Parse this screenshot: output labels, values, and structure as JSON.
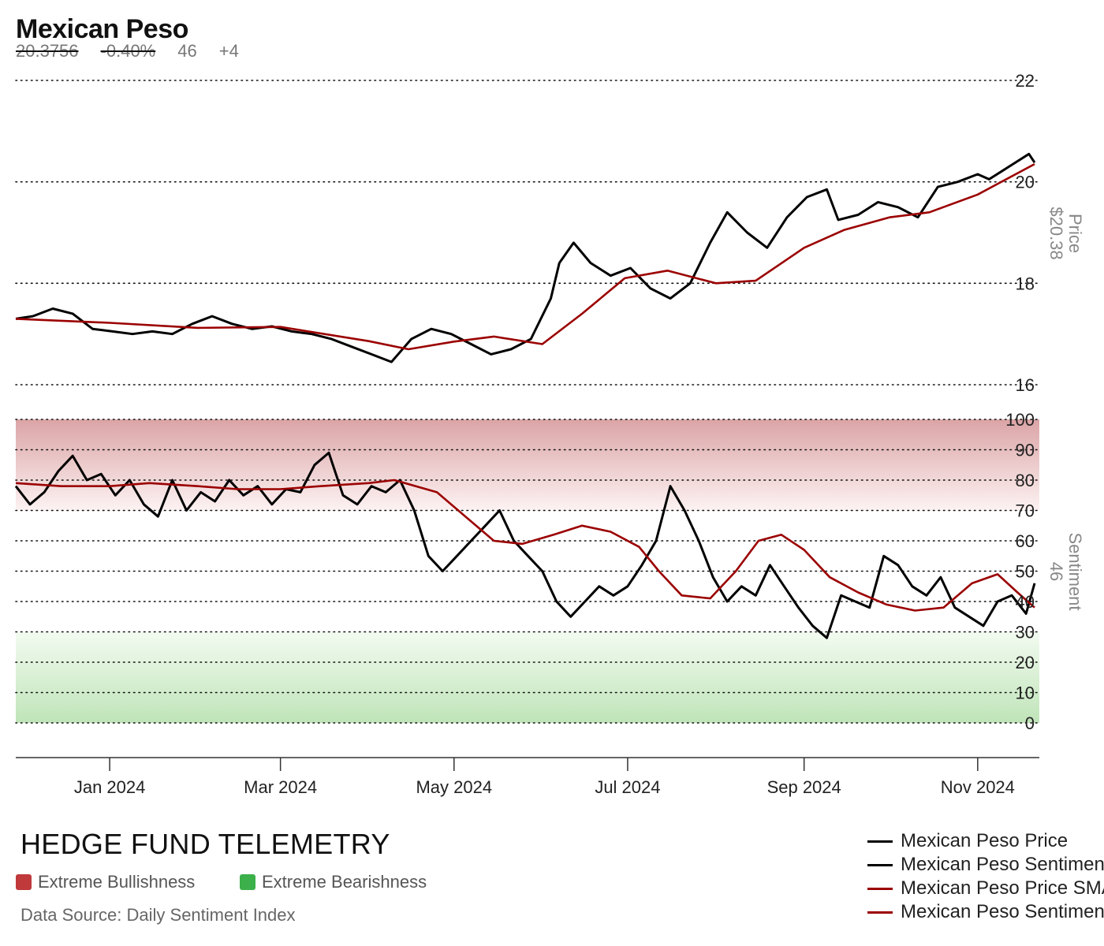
{
  "header": {
    "title": "Mexican Peso",
    "price": "20.3756",
    "change_pct": "-0.40%",
    "sentiment": "46",
    "sentiment_change": "+4"
  },
  "footer": {
    "brand": "HEDGE FUND TELEMETRY",
    "extreme_bull_label": "Extreme Bullishness",
    "extreme_bear_label": "Extreme Bearishness",
    "source": "Data Source: Daily Sentiment Index",
    "bull_color": "#c0393b",
    "bear_color": "#3cb04a"
  },
  "legend": [
    {
      "label": "Mexican Peso Price",
      "color": "#000000"
    },
    {
      "label": "Mexican Peso Sentiment",
      "color": "#000000"
    },
    {
      "label": "Mexican Peso Price SMA",
      "color": "#9b0000"
    },
    {
      "label": "Mexican Peso Sentiment SMA",
      "color": "#9b0000"
    }
  ],
  "chart_data": [
    {
      "type": "line",
      "title": "Mexican Peso",
      "ylabel": "Price",
      "ylabel_value": "$20.38",
      "ylim": [
        16,
        22
      ],
      "yticks": [
        "16",
        "18",
        "20",
        "22"
      ],
      "x_start": "2023-11-29",
      "x_end": "2024-11-21",
      "series": [
        {
          "name": "Mexican Peso Price",
          "color": "#000000",
          "points": [
            [
              "2023-11-29",
              17.3
            ],
            [
              "2023-12-05",
              17.35
            ],
            [
              "2023-12-12",
              17.5
            ],
            [
              "2023-12-19",
              17.4
            ],
            [
              "2023-12-26",
              17.1
            ],
            [
              "2024-01-02",
              17.05
            ],
            [
              "2024-01-09",
              17.0
            ],
            [
              "2024-01-16",
              17.05
            ],
            [
              "2024-01-23",
              17.0
            ],
            [
              "2024-01-30",
              17.2
            ],
            [
              "2024-02-06",
              17.35
            ],
            [
              "2024-02-13",
              17.2
            ],
            [
              "2024-02-20",
              17.1
            ],
            [
              "2024-02-27",
              17.15
            ],
            [
              "2024-03-05",
              17.05
            ],
            [
              "2024-03-12",
              17.0
            ],
            [
              "2024-03-19",
              16.9
            ],
            [
              "2024-03-26",
              16.75
            ],
            [
              "2024-04-02",
              16.6
            ],
            [
              "2024-04-09",
              16.45
            ],
            [
              "2024-04-16",
              16.9
            ],
            [
              "2024-04-23",
              17.1
            ],
            [
              "2024-04-30",
              17.0
            ],
            [
              "2024-05-07",
              16.8
            ],
            [
              "2024-05-14",
              16.6
            ],
            [
              "2024-05-21",
              16.7
            ],
            [
              "2024-05-28",
              16.9
            ],
            [
              "2024-06-04",
              17.7
            ],
            [
              "2024-06-07",
              18.4
            ],
            [
              "2024-06-12",
              18.8
            ],
            [
              "2024-06-18",
              18.4
            ],
            [
              "2024-06-25",
              18.15
            ],
            [
              "2024-07-02",
              18.3
            ],
            [
              "2024-07-09",
              17.9
            ],
            [
              "2024-07-16",
              17.7
            ],
            [
              "2024-07-23",
              18.0
            ],
            [
              "2024-07-30",
              18.8
            ],
            [
              "2024-08-05",
              19.4
            ],
            [
              "2024-08-12",
              19.0
            ],
            [
              "2024-08-19",
              18.7
            ],
            [
              "2024-08-26",
              19.3
            ],
            [
              "2024-09-02",
              19.7
            ],
            [
              "2024-09-09",
              19.85
            ],
            [
              "2024-09-13",
              19.25
            ],
            [
              "2024-09-20",
              19.35
            ],
            [
              "2024-09-27",
              19.6
            ],
            [
              "2024-10-04",
              19.5
            ],
            [
              "2024-10-11",
              19.3
            ],
            [
              "2024-10-18",
              19.9
            ],
            [
              "2024-10-25",
              20.0
            ],
            [
              "2024-11-01",
              20.15
            ],
            [
              "2024-11-05",
              20.05
            ],
            [
              "2024-11-12",
              20.3
            ],
            [
              "2024-11-19",
              20.55
            ],
            [
              "2024-11-21",
              20.38
            ]
          ]
        },
        {
          "name": "Mexican Peso Price SMA",
          "color": "#9b0000",
          "points": [
            [
              "2023-11-29",
              17.3
            ],
            [
              "2024-01-01",
              17.22
            ],
            [
              "2024-02-01",
              17.12
            ],
            [
              "2024-03-01",
              17.14
            ],
            [
              "2024-04-01",
              16.86
            ],
            [
              "2024-04-15",
              16.7
            ],
            [
              "2024-05-01",
              16.85
            ],
            [
              "2024-05-15",
              16.95
            ],
            [
              "2024-06-01",
              16.8
            ],
            [
              "2024-06-15",
              17.4
            ],
            [
              "2024-06-30",
              18.1
            ],
            [
              "2024-07-15",
              18.25
            ],
            [
              "2024-08-01",
              18.0
            ],
            [
              "2024-08-15",
              18.05
            ],
            [
              "2024-09-01",
              18.7
            ],
            [
              "2024-09-15",
              19.05
            ],
            [
              "2024-10-01",
              19.3
            ],
            [
              "2024-10-15",
              19.4
            ],
            [
              "2024-11-01",
              19.75
            ],
            [
              "2024-11-21",
              20.35
            ]
          ]
        }
      ]
    },
    {
      "type": "line",
      "ylabel": "Sentiment",
      "ylabel_value": "46",
      "ylim": [
        0,
        100
      ],
      "yticks": [
        "0",
        "10",
        "20",
        "30",
        "40",
        "50",
        "60",
        "70",
        "80",
        "90",
        "100"
      ],
      "bands": [
        {
          "name": "Extreme Bullishness",
          "from": 70,
          "to": 100,
          "color": "#c0393b"
        },
        {
          "name": "Extreme Bearishness",
          "from": 0,
          "to": 30,
          "color": "#3cb04a"
        }
      ],
      "xticks": [
        "Jan 2024",
        "Mar 2024",
        "May 2024",
        "Jul 2024",
        "Sep 2024",
        "Nov 2024"
      ],
      "xtick_dates": [
        "2024-01-01",
        "2024-03-01",
        "2024-05-01",
        "2024-07-01",
        "2024-09-01",
        "2024-11-01"
      ],
      "series": [
        {
          "name": "Mexican Peso Sentiment",
          "color": "#000000",
          "points": [
            [
              "2023-11-29",
              78
            ],
            [
              "2023-12-04",
              72
            ],
            [
              "2023-12-09",
              76
            ],
            [
              "2023-12-14",
              83
            ],
            [
              "2023-12-19",
              88
            ],
            [
              "2023-12-24",
              80
            ],
            [
              "2023-12-29",
              82
            ],
            [
              "2024-01-03",
              75
            ],
            [
              "2024-01-08",
              80
            ],
            [
              "2024-01-13",
              72
            ],
            [
              "2024-01-18",
              68
            ],
            [
              "2024-01-23",
              80
            ],
            [
              "2024-01-28",
              70
            ],
            [
              "2024-02-02",
              76
            ],
            [
              "2024-02-07",
              73
            ],
            [
              "2024-02-12",
              80
            ],
            [
              "2024-02-17",
              75
            ],
            [
              "2024-02-22",
              78
            ],
            [
              "2024-02-27",
              72
            ],
            [
              "2024-03-03",
              77
            ],
            [
              "2024-03-08",
              76
            ],
            [
              "2024-03-13",
              85
            ],
            [
              "2024-03-18",
              89
            ],
            [
              "2024-03-23",
              75
            ],
            [
              "2024-03-28",
              72
            ],
            [
              "2024-04-02",
              78
            ],
            [
              "2024-04-07",
              76
            ],
            [
              "2024-04-12",
              80
            ],
            [
              "2024-04-17",
              70
            ],
            [
              "2024-04-22",
              55
            ],
            [
              "2024-04-27",
              50
            ],
            [
              "2024-05-02",
              55
            ],
            [
              "2024-05-07",
              60
            ],
            [
              "2024-05-12",
              65
            ],
            [
              "2024-05-17",
              70
            ],
            [
              "2024-05-22",
              60
            ],
            [
              "2024-05-27",
              55
            ],
            [
              "2024-06-01",
              50
            ],
            [
              "2024-06-06",
              40
            ],
            [
              "2024-06-11",
              35
            ],
            [
              "2024-06-16",
              40
            ],
            [
              "2024-06-21",
              45
            ],
            [
              "2024-06-26",
              42
            ],
            [
              "2024-07-01",
              45
            ],
            [
              "2024-07-06",
              52
            ],
            [
              "2024-07-11",
              60
            ],
            [
              "2024-07-16",
              78
            ],
            [
              "2024-07-21",
              70
            ],
            [
              "2024-07-26",
              60
            ],
            [
              "2024-07-31",
              48
            ],
            [
              "2024-08-05",
              40
            ],
            [
              "2024-08-10",
              45
            ],
            [
              "2024-08-15",
              42
            ],
            [
              "2024-08-20",
              52
            ],
            [
              "2024-08-25",
              45
            ],
            [
              "2024-08-30",
              38
            ],
            [
              "2024-09-04",
              32
            ],
            [
              "2024-09-09",
              28
            ],
            [
              "2024-09-14",
              42
            ],
            [
              "2024-09-19",
              40
            ],
            [
              "2024-09-24",
              38
            ],
            [
              "2024-09-29",
              55
            ],
            [
              "2024-10-04",
              52
            ],
            [
              "2024-10-09",
              45
            ],
            [
              "2024-10-14",
              42
            ],
            [
              "2024-10-19",
              48
            ],
            [
              "2024-10-24",
              38
            ],
            [
              "2024-10-29",
              35
            ],
            [
              "2024-11-03",
              32
            ],
            [
              "2024-11-08",
              40
            ],
            [
              "2024-11-13",
              42
            ],
            [
              "2024-11-18",
              36
            ],
            [
              "2024-11-21",
              46
            ]
          ]
        },
        {
          "name": "Mexican Peso Sentiment SMA",
          "color": "#9b0000",
          "points": [
            [
              "2023-11-29",
              79
            ],
            [
              "2023-12-15",
              78
            ],
            [
              "2024-01-01",
              78
            ],
            [
              "2024-01-15",
              79
            ],
            [
              "2024-02-01",
              78
            ],
            [
              "2024-02-15",
              77
            ],
            [
              "2024-03-01",
              77
            ],
            [
              "2024-03-15",
              78
            ],
            [
              "2024-04-01",
              79
            ],
            [
              "2024-04-10",
              80
            ],
            [
              "2024-04-25",
              76
            ],
            [
              "2024-05-05",
              68
            ],
            [
              "2024-05-15",
              60
            ],
            [
              "2024-05-25",
              59
            ],
            [
              "2024-06-05",
              62
            ],
            [
              "2024-06-15",
              65
            ],
            [
              "2024-06-25",
              63
            ],
            [
              "2024-07-05",
              58
            ],
            [
              "2024-07-12",
              50
            ],
            [
              "2024-07-20",
              42
            ],
            [
              "2024-07-30",
              41
            ],
            [
              "2024-08-08",
              50
            ],
            [
              "2024-08-16",
              60
            ],
            [
              "2024-08-24",
              62
            ],
            [
              "2024-09-01",
              57
            ],
            [
              "2024-09-10",
              48
            ],
            [
              "2024-09-20",
              43
            ],
            [
              "2024-09-30",
              39
            ],
            [
              "2024-10-10",
              37
            ],
            [
              "2024-10-20",
              38
            ],
            [
              "2024-10-30",
              46
            ],
            [
              "2024-11-08",
              49
            ],
            [
              "2024-11-15",
              43
            ],
            [
              "2024-11-21",
              38
            ]
          ]
        }
      ]
    }
  ]
}
